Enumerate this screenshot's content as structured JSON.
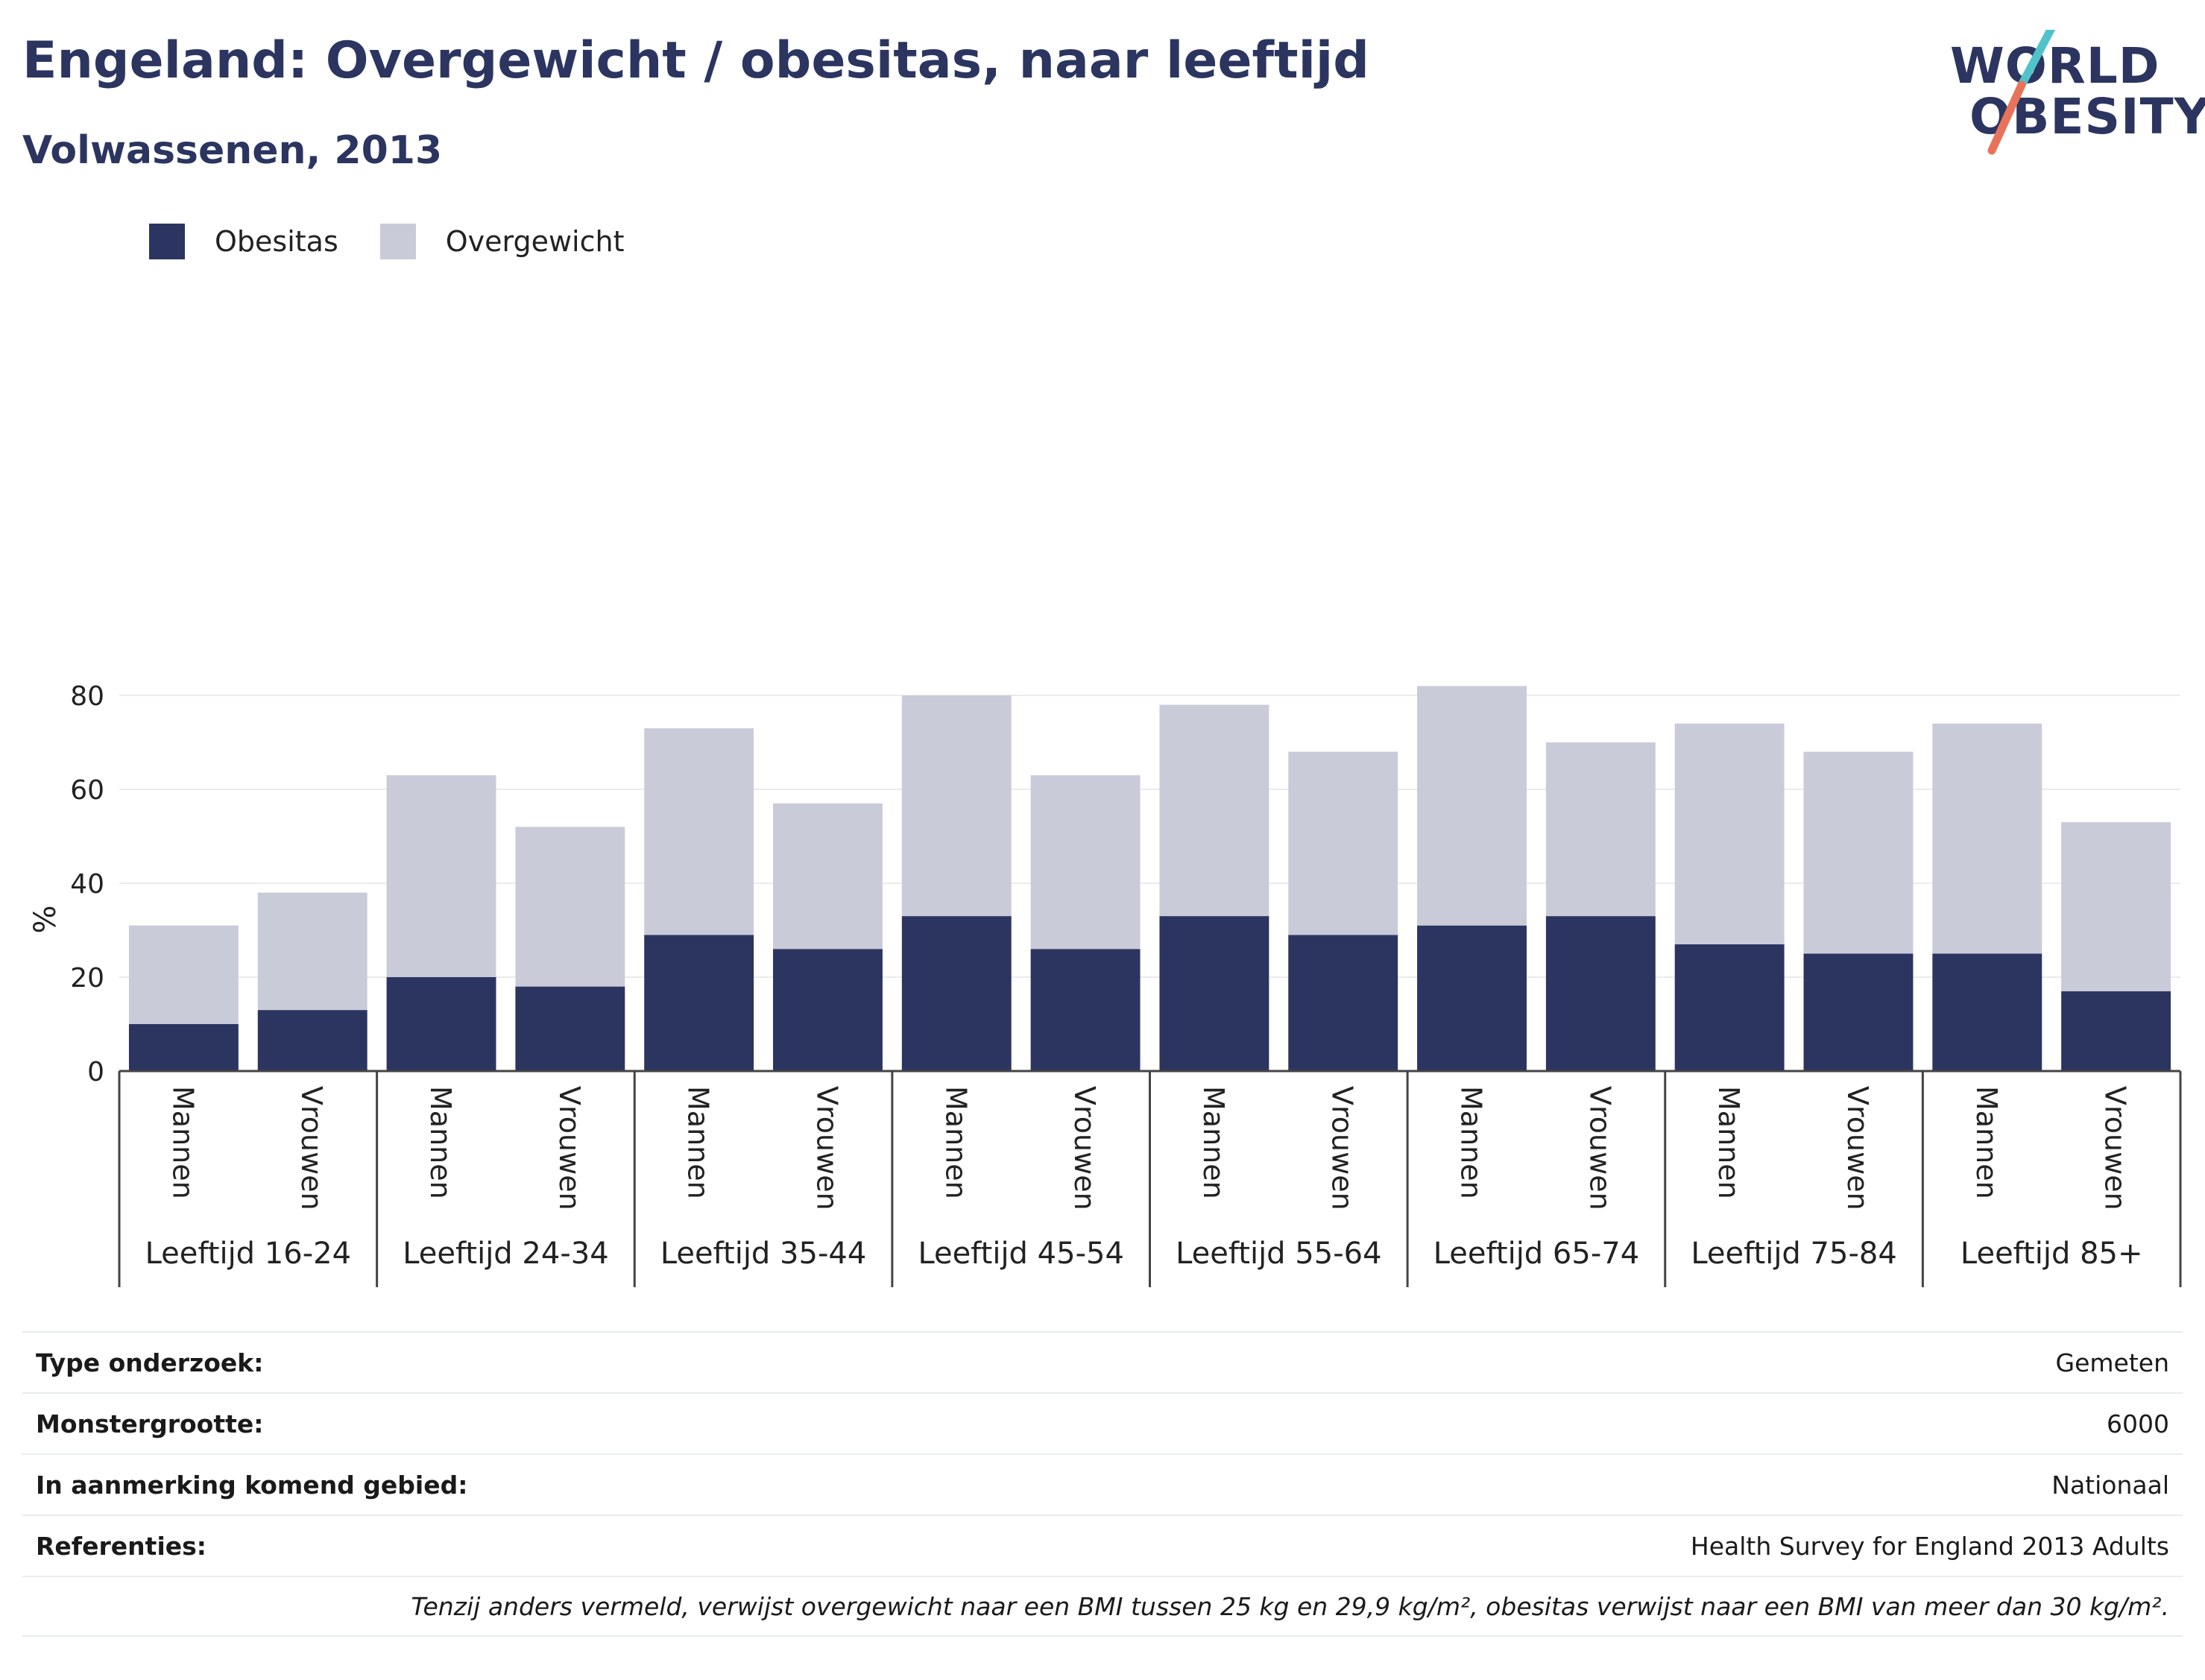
{
  "header": {
    "title": "Engeland: Overgewicht / obesitas, naar leeftijd",
    "subtitle": "Volwassenen, 2013"
  },
  "logo": {
    "line1": "WORLD",
    "line2": "OBESITY",
    "colors": {
      "text": "#2b3560",
      "slash_top": "#4fc3c9",
      "slash_bottom": "#e8735a"
    }
  },
  "chart_data": {
    "type": "bar",
    "stacked": true,
    "ylabel": "%",
    "ylim": [
      0,
      90
    ],
    "yticks": [
      0,
      20,
      40,
      60,
      80
    ],
    "grid": true,
    "legend_position": "top-left",
    "groups": [
      "Leeftijd 16-24",
      "Leeftijd 24-34",
      "Leeftijd 35-44",
      "Leeftijd 45-54",
      "Leeftijd 55-64",
      "Leeftijd 65-74",
      "Leeftijd 75-84",
      "Leeftijd 85+"
    ],
    "subcategories": [
      "Mannen",
      "Vrouwen"
    ],
    "series": [
      {
        "name": "Obesitas",
        "color": "#2b3560",
        "values": [
          10,
          13,
          20,
          18,
          29,
          26,
          33,
          26,
          33,
          29,
          31,
          33,
          27,
          25,
          25,
          17
        ]
      },
      {
        "name": "Overgewicht",
        "color": "#c9cbd8",
        "values": [
          21,
          25,
          43,
          34,
          44,
          31,
          47,
          37,
          45,
          39,
          51,
          37,
          47,
          43,
          49,
          36
        ]
      }
    ]
  },
  "info": {
    "rows": [
      {
        "label": "Type onderzoek:",
        "value": "Gemeten"
      },
      {
        "label": "Monstergrootte:",
        "value": "6000"
      },
      {
        "label": "In aanmerking komend gebied:",
        "value": "Nationaal"
      },
      {
        "label": "Referenties:",
        "value": "Health Survey for England 2013 Adults"
      }
    ],
    "note": "Tenzij anders vermeld, verwijst overgewicht naar een BMI tussen 25 kg en 29,9 kg/m², obesitas verwijst naar een BMI van meer dan 30 kg/m²."
  }
}
